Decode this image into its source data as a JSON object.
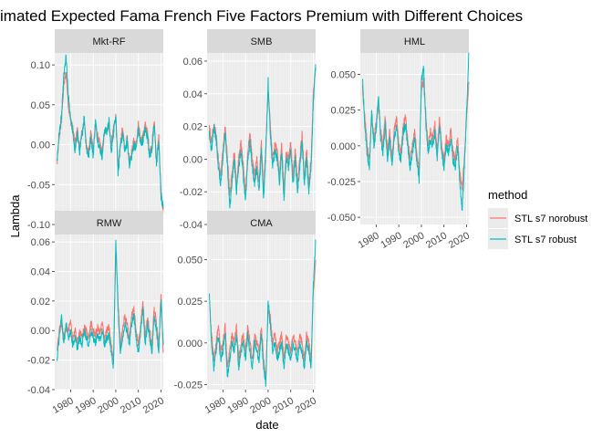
{
  "chart_data": {
    "type": "line",
    "title": "imated Expected Fama French Five Factors Premium with Different Choices",
    "xlabel": "date",
    "ylabel": "Lambda",
    "x_ticks": [
      1980,
      1990,
      2000,
      2010,
      2020
    ],
    "x_range": [
      1973,
      2021
    ],
    "legend": {
      "title": "method",
      "placement": "right",
      "entries": [
        {
          "label": "STL s7 norobust",
          "color": "#F8766D"
        },
        {
          "label": "STL s7 robust",
          "color": "#00BFC4"
        }
      ]
    },
    "panels": [
      {
        "name": "Mkt-RF",
        "ylim": [
          -0.1,
          0.115
        ],
        "y_ticks": [
          0.1,
          0.05,
          0.0,
          -0.05,
          -0.1
        ],
        "y_tick_labels": [
          "0.10",
          "0.05",
          "0.00",
          "-0.05",
          "-0.10"
        ],
        "x": [
          1974,
          1975,
          1976,
          1977,
          1978,
          1979,
          1980,
          1981,
          1982,
          1983,
          1984,
          1985,
          1986,
          1987,
          1988,
          1989,
          1990,
          1991,
          1992,
          1993,
          1994,
          1995,
          1996,
          1997,
          1998,
          1999,
          2000,
          2001,
          2002,
          2003,
          2004,
          2005,
          2006,
          2007,
          2008,
          2009,
          2010,
          2011,
          2012,
          2013,
          2014,
          2015,
          2016,
          2017,
          2018,
          2019,
          2020,
          2021
        ],
        "series": [
          {
            "name": "STL s7 norobust",
            "values": [
              -0.025,
              0.01,
              0.03,
              0.075,
              0.09,
              0.05,
              0.03,
              0.02,
              0.0,
              0.02,
              -0.005,
              0.015,
              0.03,
              0.0,
              -0.01,
              0.015,
              -0.005,
              0.025,
              0.01,
              0.0,
              -0.01,
              0.015,
              0.02,
              0.025,
              0.0,
              0.02,
              0.035,
              -0.03,
              0.0,
              0.02,
              -0.005,
              0.01,
              -0.02,
              -0.01,
              0.005,
              0.0,
              0.025,
              0.005,
              0.01,
              0.025,
              0.015,
              -0.01,
              0.0,
              0.03,
              -0.02,
              0.01,
              -0.06,
              -0.085
            ]
          },
          {
            "name": "STL s7 robust",
            "values": [
              -0.02,
              0.015,
              0.035,
              0.085,
              0.11,
              0.06,
              0.035,
              0.015,
              -0.01,
              0.015,
              -0.01,
              0.01,
              0.035,
              -0.005,
              -0.015,
              0.01,
              -0.015,
              0.03,
              0.005,
              -0.005,
              -0.015,
              0.02,
              0.015,
              0.03,
              -0.01,
              0.015,
              0.04,
              -0.035,
              -0.005,
              0.015,
              -0.01,
              0.005,
              -0.025,
              -0.015,
              0.0,
              -0.005,
              0.02,
              0.0,
              0.005,
              0.02,
              0.01,
              -0.015,
              -0.005,
              0.025,
              -0.025,
              0.005,
              -0.065,
              -0.08
            ]
          }
        ]
      },
      {
        "name": "SMB",
        "ylim": [
          -0.04,
          0.065
        ],
        "y_ticks": [
          0.06,
          0.04,
          0.02,
          0.0,
          -0.02,
          -0.04
        ],
        "y_tick_labels": [
          "0.06",
          "0.04",
          "0.02",
          "0.00",
          "-0.02",
          "-0.04"
        ],
        "x": [
          1974,
          1975,
          1976,
          1977,
          1978,
          1979,
          1980,
          1981,
          1982,
          1983,
          1984,
          1985,
          1986,
          1987,
          1988,
          1989,
          1990,
          1991,
          1992,
          1993,
          1994,
          1995,
          1996,
          1997,
          1998,
          1999,
          2000,
          2001,
          2002,
          2003,
          2004,
          2005,
          2006,
          2007,
          2008,
          2009,
          2010,
          2011,
          2012,
          2013,
          2014,
          2015,
          2016,
          2017,
          2018,
          2019,
          2020,
          2021
        ],
        "series": [
          {
            "name": "STL s7 norobust",
            "values": [
              0.02,
              0.01,
              0.022,
              0.015,
              0.0,
              -0.01,
              0.005,
              0.02,
              0.0,
              -0.02,
              -0.01,
              0.005,
              -0.015,
              0.0,
              0.01,
              -0.005,
              -0.02,
              0.005,
              0.015,
              0.0,
              -0.01,
              0.0,
              -0.015,
              0.01,
              -0.02,
              0.01,
              0.04,
              0.02,
              0.0,
              0.01,
              0.005,
              -0.01,
              0.01,
              -0.02,
              0.005,
              0.0,
              0.01,
              -0.01,
              0.005,
              -0.015,
              0.0,
              0.015,
              -0.01,
              0.005,
              -0.015,
              0.0,
              0.04,
              0.055
            ]
          },
          {
            "name": "STL s7 robust",
            "values": [
              0.015,
              0.005,
              0.02,
              0.012,
              -0.005,
              -0.015,
              0.0,
              0.018,
              -0.005,
              -0.03,
              -0.015,
              0.0,
              -0.02,
              -0.005,
              0.005,
              -0.01,
              -0.025,
              0.0,
              0.01,
              -0.005,
              -0.015,
              -0.005,
              -0.02,
              0.005,
              -0.025,
              0.005,
              0.048,
              0.015,
              -0.005,
              0.005,
              0.0,
              -0.015,
              0.005,
              -0.025,
              0.0,
              -0.005,
              0.005,
              -0.015,
              0.0,
              -0.02,
              -0.005,
              0.01,
              -0.015,
              0.0,
              -0.02,
              -0.005,
              0.035,
              0.058
            ]
          }
        ]
      },
      {
        "name": "HML",
        "ylim": [
          -0.055,
          0.065
        ],
        "y_ticks": [
          0.05,
          0.025,
          0.0,
          -0.025,
          -0.05
        ],
        "y_tick_labels": [
          "0.050",
          "0.025",
          "0.000",
          "-0.025",
          "-0.050"
        ],
        "x": [
          1974,
          1975,
          1976,
          1977,
          1978,
          1979,
          1980,
          1981,
          1982,
          1983,
          1984,
          1985,
          1986,
          1987,
          1988,
          1989,
          1990,
          1991,
          1992,
          1993,
          1994,
          1995,
          1996,
          1997,
          1998,
          1999,
          2000,
          2001,
          2002,
          2003,
          2004,
          2005,
          2006,
          2007,
          2008,
          2009,
          2010,
          2011,
          2012,
          2013,
          2014,
          2015,
          2016,
          2017,
          2018,
          2019,
          2020,
          2021
        ],
        "series": [
          {
            "name": "STL s7 norobust",
            "values": [
              0.04,
              0.02,
              0.0,
              -0.01,
              0.02,
              0.005,
              0.015,
              0.03,
              0.01,
              0.0,
              0.02,
              -0.005,
              0.01,
              -0.01,
              0.01,
              0.02,
              0.0,
              -0.005,
              0.015,
              0.02,
              0.005,
              -0.01,
              0.0,
              0.01,
              -0.005,
              -0.02,
              0.04,
              0.045,
              0.02,
              0.0,
              0.01,
              0.005,
              0.015,
              -0.005,
              0.02,
              0.0,
              -0.01,
              0.005,
              0.0,
              0.01,
              -0.005,
              -0.01,
              0.005,
              -0.02,
              -0.03,
              -0.01,
              0.02,
              0.045
            ]
          },
          {
            "name": "STL s7 robust",
            "values": [
              0.045,
              0.015,
              -0.005,
              -0.015,
              0.025,
              0.0,
              0.01,
              0.035,
              0.005,
              -0.005,
              0.015,
              -0.01,
              0.005,
              -0.015,
              0.005,
              0.015,
              -0.005,
              -0.01,
              0.01,
              0.015,
              0.0,
              -0.015,
              -0.005,
              0.005,
              -0.01,
              -0.025,
              0.045,
              0.055,
              0.015,
              -0.005,
              0.005,
              0.0,
              0.01,
              -0.01,
              0.015,
              -0.005,
              -0.015,
              0.0,
              -0.005,
              0.005,
              -0.01,
              -0.015,
              0.0,
              -0.025,
              -0.045,
              -0.015,
              0.025,
              0.065
            ]
          }
        ]
      },
      {
        "name": "RMW",
        "ylim": [
          -0.04,
          0.065
        ],
        "y_ticks": [
          0.06,
          0.04,
          0.02,
          0.0,
          -0.02,
          -0.04
        ],
        "y_tick_labels": [
          "0.06",
          "0.04",
          "0.02",
          "0.00",
          "-0.02",
          "-0.04"
        ],
        "x": [
          1974,
          1975,
          1976,
          1977,
          1978,
          1979,
          1980,
          1981,
          1982,
          1983,
          1984,
          1985,
          1986,
          1987,
          1988,
          1989,
          1990,
          1991,
          1992,
          1993,
          1994,
          1995,
          1996,
          1997,
          1998,
          1999,
          2000,
          2001,
          2002,
          2003,
          2004,
          2005,
          2006,
          2007,
          2008,
          2009,
          2010,
          2011,
          2012,
          2013,
          2014,
          2015,
          2016,
          2017,
          2018,
          2019,
          2020,
          2021
        ],
        "series": [
          {
            "name": "STL s7 norobust",
            "values": [
              -0.015,
              0.0,
              0.005,
              -0.005,
              0.002,
              0.0,
              0.005,
              -0.005,
              0.0,
              -0.008,
              0.0,
              -0.005,
              0.002,
              0.0,
              -0.005,
              0.005,
              0.0,
              -0.003,
              0.002,
              -0.002,
              0.005,
              -0.005,
              0.0,
              0.002,
              -0.01,
              -0.02,
              0.055,
              0.02,
              -0.01,
              0.0,
              0.01,
              0.005,
              -0.005,
              0.01,
              0.015,
              0.0,
              -0.01,
              0.005,
              0.02,
              -0.005,
              0.01,
              0.0,
              -0.01,
              0.015,
              0.005,
              -0.01,
              0.025,
              -0.015
            ]
          },
          {
            "name": "STL s7 robust",
            "values": [
              -0.02,
              -0.005,
              0.01,
              -0.01,
              0.005,
              -0.005,
              0.0,
              -0.01,
              -0.005,
              -0.012,
              -0.005,
              -0.01,
              0.0,
              -0.005,
              -0.01,
              0.0,
              -0.005,
              -0.008,
              -0.003,
              -0.007,
              0.0,
              -0.01,
              -0.005,
              -0.003,
              -0.015,
              -0.025,
              0.062,
              0.015,
              -0.015,
              -0.005,
              0.005,
              0.0,
              -0.01,
              0.005,
              0.01,
              -0.005,
              -0.015,
              0.0,
              0.015,
              -0.01,
              0.005,
              -0.005,
              -0.015,
              0.01,
              0.0,
              -0.015,
              0.02,
              -0.01
            ]
          }
        ]
      },
      {
        "name": "CMA",
        "ylim": [
          -0.028,
          0.065
        ],
        "y_ticks": [
          0.05,
          0.025,
          0.0,
          -0.025
        ],
        "y_tick_labels": [
          "0.050",
          "0.025",
          "0.000",
          "-0.025"
        ],
        "x": [
          1974,
          1975,
          1976,
          1977,
          1978,
          1979,
          1980,
          1981,
          1982,
          1983,
          1984,
          1985,
          1986,
          1987,
          1988,
          1989,
          1990,
          1991,
          1992,
          1993,
          1994,
          1995,
          1996,
          1997,
          1998,
          1999,
          2000,
          2001,
          2002,
          2003,
          2004,
          2005,
          2006,
          2007,
          2008,
          2009,
          2010,
          2011,
          2012,
          2013,
          2014,
          2015,
          2016,
          2017,
          2018,
          2019,
          2020,
          2021
        ],
        "series": [
          {
            "name": "STL s7 norobust",
            "values": [
              0.025,
              0.005,
              -0.01,
              0.0,
              0.01,
              -0.005,
              0.0,
              0.01,
              -0.015,
              -0.005,
              0.005,
              0.0,
              0.01,
              -0.01,
              0.0,
              0.005,
              -0.005,
              0.01,
              0.0,
              -0.01,
              0.005,
              0.0,
              -0.005,
              0.01,
              -0.01,
              -0.02,
              0.02,
              0.015,
              0.0,
              0.005,
              -0.005,
              0.0,
              0.005,
              -0.01,
              0.005,
              0.0,
              -0.005,
              0.005,
              0.0,
              -0.005,
              0.005,
              0.0,
              -0.01,
              0.005,
              0.0,
              -0.01,
              0.03,
              0.05
            ]
          },
          {
            "name": "STL s7 robust",
            "values": [
              0.028,
              0.0,
              -0.015,
              -0.005,
              0.005,
              -0.01,
              -0.005,
              0.005,
              -0.02,
              -0.01,
              0.0,
              -0.005,
              0.005,
              -0.015,
              -0.005,
              0.0,
              -0.01,
              0.005,
              -0.005,
              -0.015,
              0.0,
              -0.005,
              -0.01,
              0.005,
              -0.015,
              -0.025,
              0.025,
              0.01,
              -0.005,
              0.0,
              -0.01,
              -0.005,
              0.0,
              -0.015,
              0.0,
              -0.005,
              -0.01,
              0.0,
              -0.005,
              -0.01,
              0.0,
              -0.005,
              -0.015,
              0.0,
              -0.005,
              -0.015,
              0.035,
              0.062
            ]
          }
        ]
      }
    ]
  }
}
